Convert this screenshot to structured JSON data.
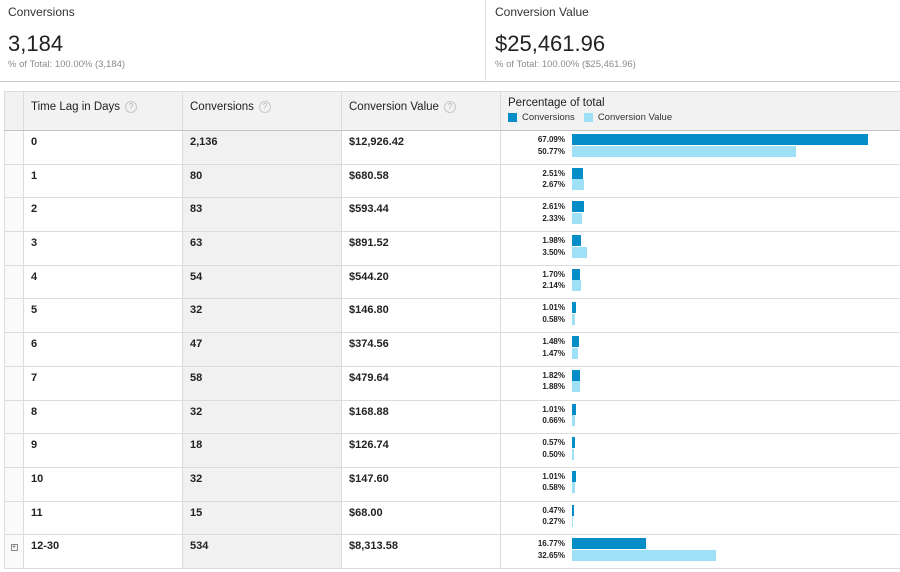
{
  "scorecards": [
    {
      "title": "Conversions",
      "value": "3,184",
      "sub": "% of Total: 100.00% (3,184)"
    },
    {
      "title": "Conversion Value",
      "value": "$25,461.96",
      "sub": "% of Total: 100.00% ($25,461.96)"
    }
  ],
  "table": {
    "headers": {
      "lag": "Time Lag in Days",
      "conversions": "Conversions",
      "value": "Conversion Value",
      "pct": "Percentage of total"
    },
    "help_glyph": "?",
    "legend": {
      "conversions": "Conversions",
      "value": "Conversion Value"
    },
    "colors": {
      "conversions": "#058dc7",
      "value": "#9ee0f5"
    },
    "rows": [
      {
        "lag": "0",
        "conversions": "2,136",
        "value": "$12,926.42",
        "conv_pct": "67.09%",
        "val_pct": "50.77%"
      },
      {
        "lag": "1",
        "conversions": "80",
        "value": "$680.58",
        "conv_pct": "2.51%",
        "val_pct": "2.67%"
      },
      {
        "lag": "2",
        "conversions": "83",
        "value": "$593.44",
        "conv_pct": "2.61%",
        "val_pct": "2.33%"
      },
      {
        "lag": "3",
        "conversions": "63",
        "value": "$891.52",
        "conv_pct": "1.98%",
        "val_pct": "3.50%"
      },
      {
        "lag": "4",
        "conversions": "54",
        "value": "$544.20",
        "conv_pct": "1.70%",
        "val_pct": "2.14%"
      },
      {
        "lag": "5",
        "conversions": "32",
        "value": "$146.80",
        "conv_pct": "1.01%",
        "val_pct": "0.58%"
      },
      {
        "lag": "6",
        "conversions": "47",
        "value": "$374.56",
        "conv_pct": "1.48%",
        "val_pct": "1.47%"
      },
      {
        "lag": "7",
        "conversions": "58",
        "value": "$479.64",
        "conv_pct": "1.82%",
        "val_pct": "1.88%"
      },
      {
        "lag": "8",
        "conversions": "32",
        "value": "$168.88",
        "conv_pct": "1.01%",
        "val_pct": "0.66%"
      },
      {
        "lag": "9",
        "conversions": "18",
        "value": "$126.74",
        "conv_pct": "0.57%",
        "val_pct": "0.50%"
      },
      {
        "lag": "10",
        "conversions": "32",
        "value": "$147.60",
        "conv_pct": "1.01%",
        "val_pct": "0.58%"
      },
      {
        "lag": "11",
        "conversions": "15",
        "value": "$68.00",
        "conv_pct": "0.47%",
        "val_pct": "0.27%"
      },
      {
        "lag": "12-30",
        "conversions": "534",
        "value": "$8,313.58",
        "conv_pct": "16.77%",
        "val_pct": "32.65%",
        "expandable": true,
        "expand_glyph": "+"
      }
    ]
  }
}
